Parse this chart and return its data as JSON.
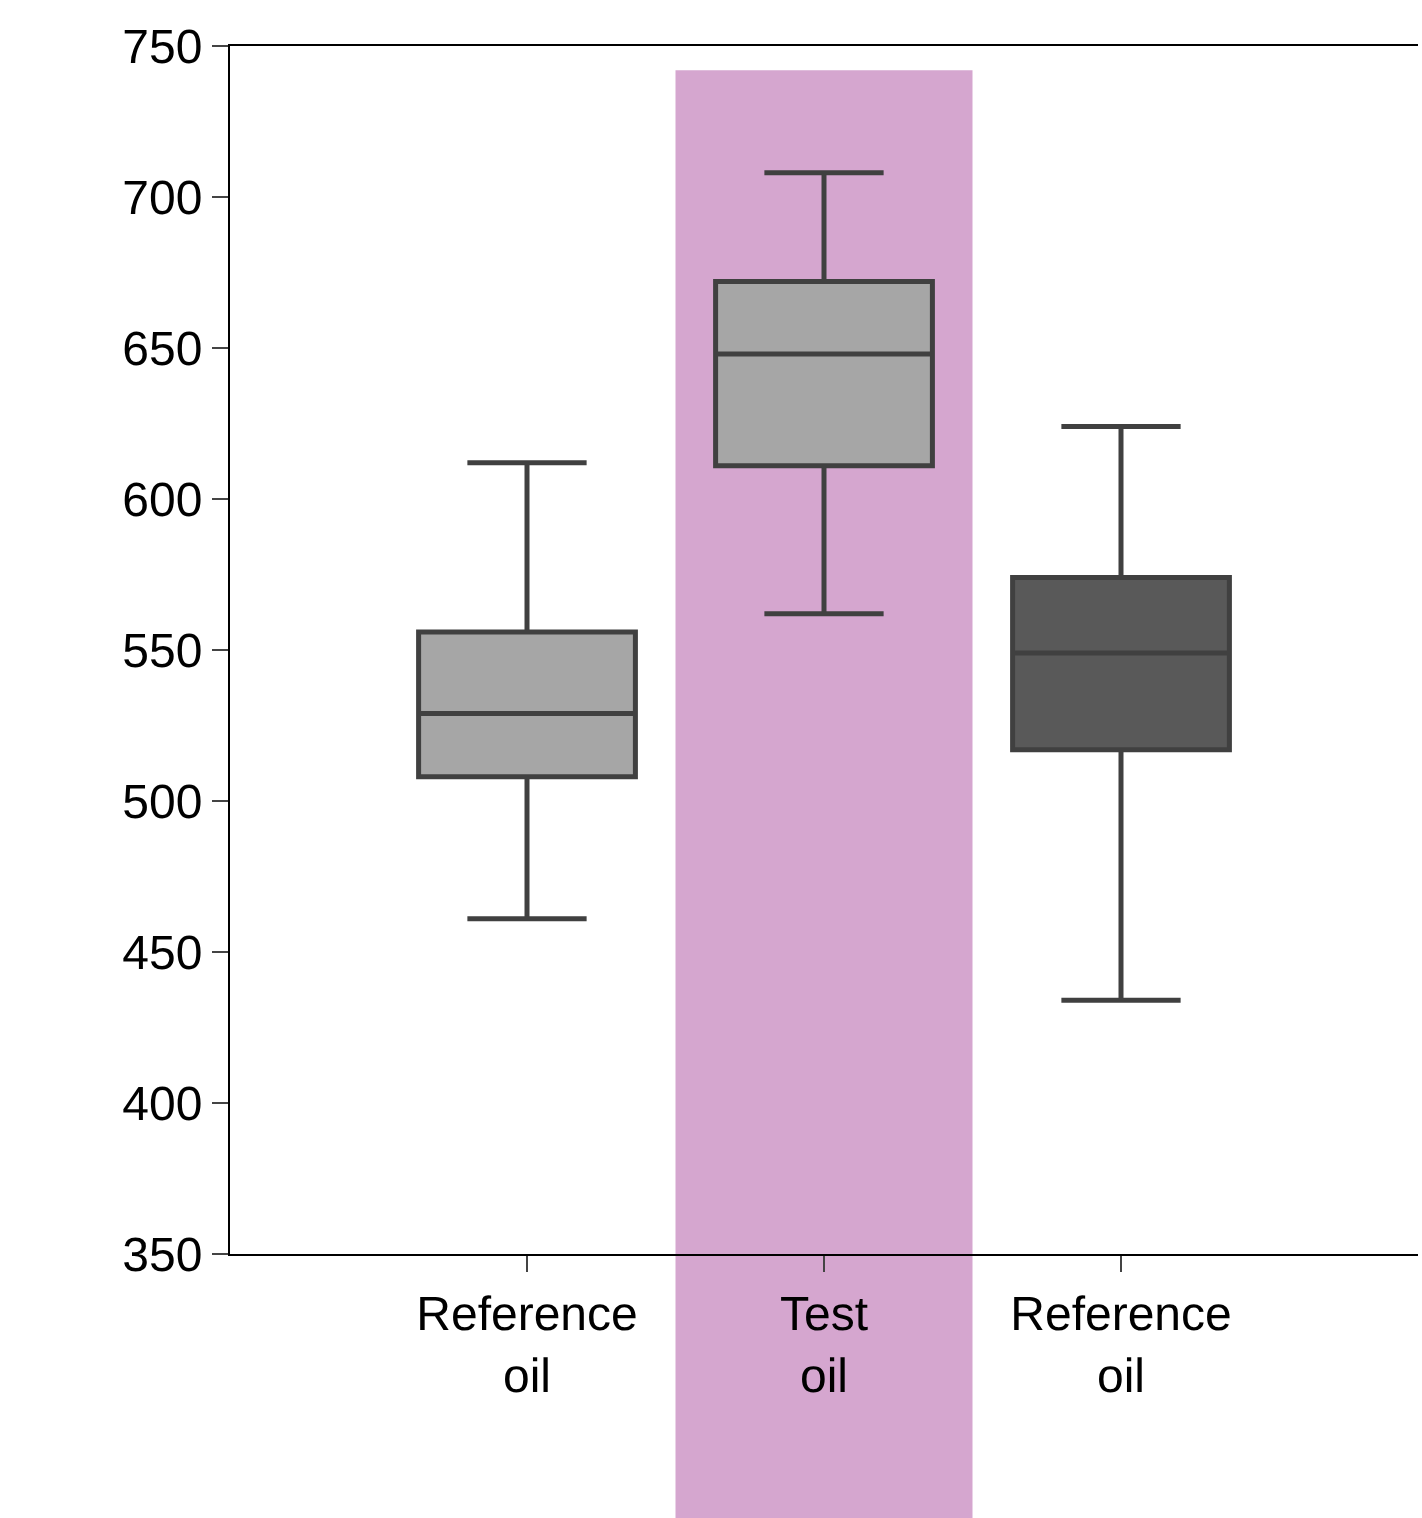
{
  "chart_data": {
    "type": "box",
    "categories": [
      "Reference\noil",
      "Test\noil",
      "Reference\noil"
    ],
    "series": [
      {
        "color": "#a6a6a6",
        "boxes": [
          {
            "low": 461,
            "q1": 508,
            "median": 529,
            "q3": 556,
            "high": 612
          },
          null,
          null
        ]
      },
      {
        "color": "#a6a6a6",
        "boxes": [
          null,
          {
            "low": 562,
            "q1": 611,
            "median": 648,
            "q3": 672,
            "high": 708
          },
          null
        ]
      },
      {
        "color": "#595959",
        "boxes": [
          null,
          null,
          {
            "low": 434,
            "q1": 517,
            "median": 549,
            "q3": 574,
            "high": 624
          }
        ]
      }
    ],
    "ylim": [
      350,
      750
    ],
    "yticks": [
      350,
      400,
      450,
      500,
      550,
      600,
      650,
      700,
      750
    ],
    "grid": false,
    "bands": [
      {
        "axis": "x",
        "from": "Test\noil",
        "to": "Test\noil",
        "color": "#d5a6cf"
      }
    ]
  }
}
